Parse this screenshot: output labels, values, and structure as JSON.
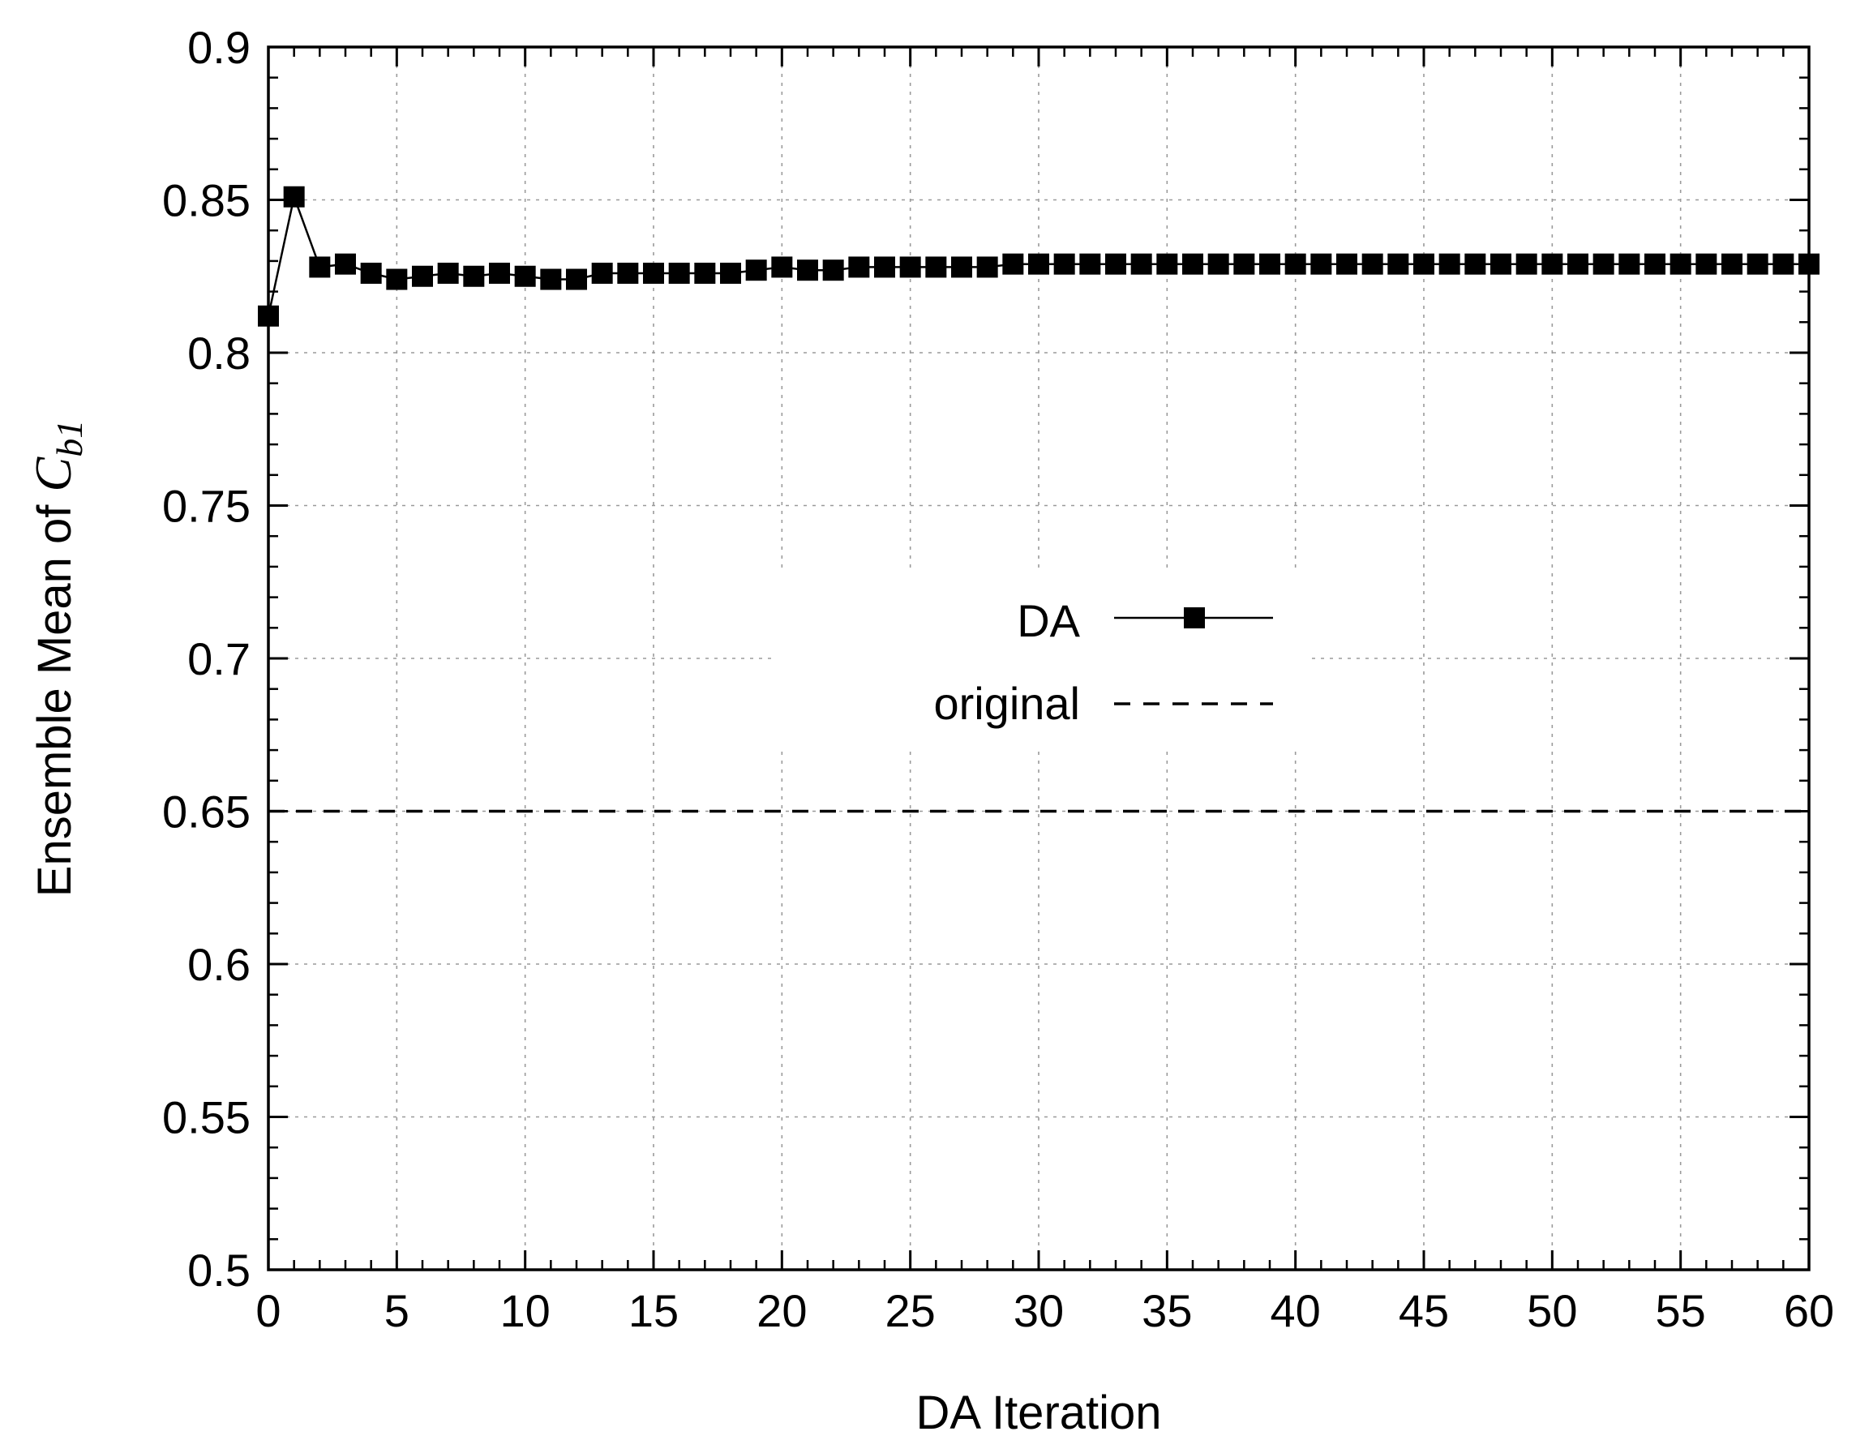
{
  "chart_data": {
    "type": "line",
    "xlabel": "DA Iteration",
    "ylabel": {
      "prefix": "Ensemble Mean of ",
      "symbol": "C",
      "subscript": "b1"
    },
    "xlim": [
      0,
      60
    ],
    "ylim": [
      0.5,
      0.9
    ],
    "xticks": [
      "0",
      "5",
      "10",
      "15",
      "20",
      "25",
      "30",
      "35",
      "40",
      "45",
      "50",
      "55",
      "60"
    ],
    "yticks": [
      "0.5",
      "0.55",
      "0.6",
      "0.65",
      "0.7",
      "0.75",
      "0.8",
      "0.85",
      "0.9"
    ],
    "grid": true,
    "legend_position": "center",
    "series": [
      {
        "name": "DA",
        "style": "solid-line-square-markers",
        "color": "#000000",
        "x": [
          0,
          1,
          2,
          3,
          4,
          5,
          6,
          7,
          8,
          9,
          10,
          11,
          12,
          13,
          14,
          15,
          16,
          17,
          18,
          19,
          20,
          21,
          22,
          23,
          24,
          25,
          26,
          27,
          28,
          29,
          30,
          31,
          32,
          33,
          34,
          35,
          36,
          37,
          38,
          39,
          40,
          41,
          42,
          43,
          44,
          45,
          46,
          47,
          48,
          49,
          50,
          51,
          52,
          53,
          54,
          55,
          56,
          57,
          58,
          59,
          60
        ],
        "y": [
          0.812,
          0.851,
          0.828,
          0.829,
          0.826,
          0.824,
          0.825,
          0.826,
          0.825,
          0.826,
          0.825,
          0.824,
          0.824,
          0.826,
          0.826,
          0.826,
          0.826,
          0.826,
          0.826,
          0.827,
          0.828,
          0.827,
          0.827,
          0.828,
          0.828,
          0.828,
          0.828,
          0.828,
          0.828,
          0.829,
          0.829,
          0.829,
          0.829,
          0.829,
          0.829,
          0.829,
          0.829,
          0.829,
          0.829,
          0.829,
          0.829,
          0.829,
          0.829,
          0.829,
          0.829,
          0.829,
          0.829,
          0.829,
          0.829,
          0.829,
          0.829,
          0.829,
          0.829,
          0.829,
          0.829,
          0.829,
          0.829,
          0.829,
          0.829,
          0.829,
          0.829
        ]
      },
      {
        "name": "original",
        "style": "dashed-line",
        "color": "#000000",
        "x": [
          0,
          60
        ],
        "y": [
          0.65,
          0.65
        ]
      }
    ]
  }
}
